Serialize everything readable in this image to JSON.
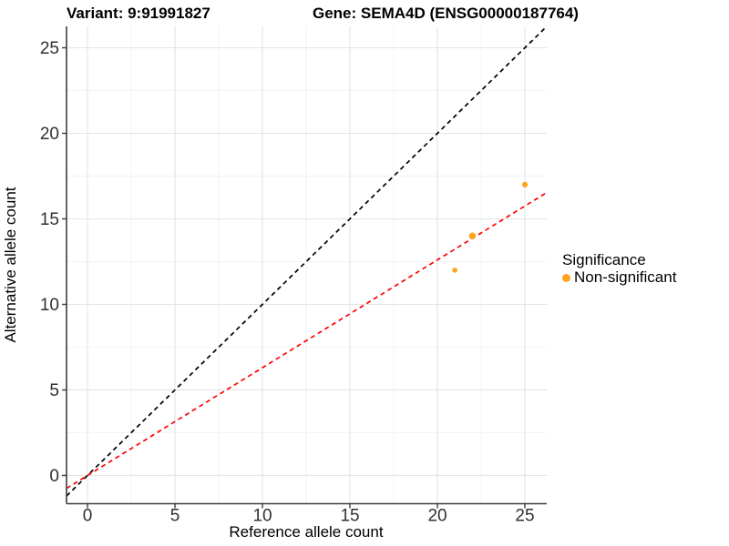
{
  "titles": {
    "variant": "Variant: 9:91991827",
    "gene": "Gene: SEMA4D (ENSG00000187764)"
  },
  "chart_data": {
    "type": "scatter",
    "xlabel": "Reference allele count",
    "ylabel": "Alternative allele count",
    "xlim": [
      -1.2,
      26.25
    ],
    "ylim": [
      -1.65,
      26.25
    ],
    "x_ticks": [
      0,
      5,
      10,
      15,
      20,
      25
    ],
    "y_ticks": [
      0,
      5,
      10,
      15,
      20,
      25
    ],
    "minor_ticks": [
      2.5,
      7.5,
      12.5,
      17.5,
      22.5
    ],
    "grid": true,
    "points": [
      {
        "x": 21,
        "y": 12,
        "r": 2.8
      },
      {
        "x": 22,
        "y": 14,
        "r": 3.8
      },
      {
        "x": 25,
        "y": 17,
        "r": 3.1
      }
    ],
    "point_color": "#FFA41E",
    "lines": [
      {
        "name": "identity-line",
        "slope": 1,
        "intercept": 0,
        "color": "#000000",
        "dash": "5,4"
      },
      {
        "name": "fit-line",
        "slope": 0.63,
        "intercept": 0,
        "color": "#FF0000",
        "dash": "5,4"
      }
    ],
    "legend": {
      "title": "Significance",
      "position": "right",
      "items": [
        {
          "label": "Non-significant",
          "color": "#FFA41E"
        }
      ]
    },
    "style": {
      "axis_color": "#3C3C3C",
      "tick_label_color": "#303030",
      "major_grid_color": "#E4E4E4",
      "minor_grid_color": "#F2F2F2"
    }
  }
}
